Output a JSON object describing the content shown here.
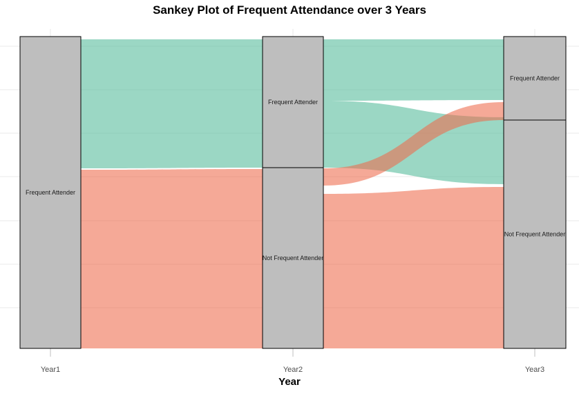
{
  "chart_data": {
    "type": "sankey",
    "title": "Sankey Plot of Frequent Attendance over 3 Years",
    "xlabel": "Year",
    "legend": "none",
    "grid": "horizontal-major",
    "axes": [
      {
        "label": "Year1",
        "strata": [
          {
            "name": "Frequent Attender",
            "share": 1.0,
            "span": [
              0,
              1
            ]
          }
        ]
      },
      {
        "label": "Year2",
        "strata": [
          {
            "name": "Frequent Attender",
            "share": 0.42,
            "span": [
              0,
              0.4204
            ]
          },
          {
            "name": "Not Frequent Attender",
            "share": 0.58,
            "span": [
              0.4204,
              1
            ]
          }
        ]
      },
      {
        "label": "Year3",
        "strata": [
          {
            "name": "Frequent Attender",
            "share": 0.27,
            "span": [
              0,
              0.2677
            ]
          },
          {
            "name": "Not Frequent Attender",
            "share": 0.73,
            "span": [
              0.2677,
              1
            ]
          }
        ]
      }
    ],
    "links": [
      {
        "from": [
          0,
          0
        ],
        "to": [
          1,
          0
        ],
        "color": "teal",
        "share": 0.42,
        "src_span": [
          0.0088,
          0.4226
        ],
        "tgt_span": [
          0.0088,
          0.4204
        ]
      },
      {
        "from": [
          0,
          0
        ],
        "to": [
          1,
          1
        ],
        "color": "salmon",
        "share": 0.58,
        "src_span": [
          0.427,
          1.0
        ],
        "tgt_span": [
          0.4248,
          1.0
        ]
      },
      {
        "from": [
          1,
          0
        ],
        "to": [
          2,
          0
        ],
        "color": "teal",
        "share": 0.2,
        "src_span": [
          0.0088,
          0.2058
        ],
        "tgt_span": [
          0.0088,
          0.2035
        ]
      },
      {
        "from": [
          1,
          0
        ],
        "to": [
          2,
          1
        ],
        "color": "teal",
        "share": 0.22,
        "src_span": [
          0.2058,
          0.4204
        ],
        "tgt_span": [
          0.2588,
          0.4735
        ]
      },
      {
        "from": [
          1,
          1
        ],
        "to": [
          2,
          0
        ],
        "color": "salmon",
        "share": 0.06,
        "src_span": [
          0.4226,
          0.4779
        ],
        "tgt_span": [
          0.2102,
          0.2677
        ]
      },
      {
        "from": [
          1,
          1
        ],
        "to": [
          2,
          1
        ],
        "color": "salmon",
        "share": 0.52,
        "src_span": [
          0.5044,
          1.0
        ],
        "tgt_span": [
          0.4823,
          1.0
        ]
      }
    ],
    "colors": {
      "teal": "#66C2A5",
      "teal_opacity": 0.65,
      "salmon": "#EE6B4C",
      "salmon_opacity": 0.58,
      "stratum_fill": "#BEBEBE",
      "stratum_border": "#000000",
      "gridline": "#E9E9E9",
      "tick": "#BFBFBF",
      "axis_text": "#4D4D4D",
      "label_text": "#1A1A1A"
    }
  }
}
